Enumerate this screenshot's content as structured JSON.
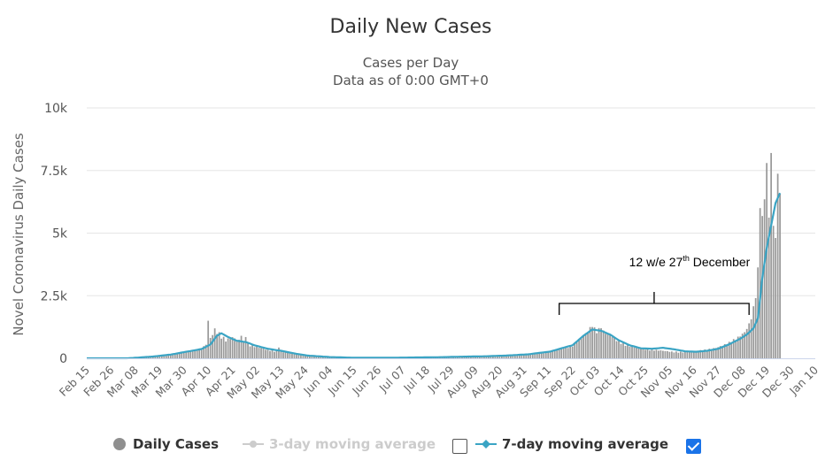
{
  "chart_data": {
    "type": "bar",
    "title": "Daily New Cases",
    "subtitle": [
      "Cases per Day",
      "Data as of 0:00 GMT+0"
    ],
    "ylabel": "Novel Coronavirus Daily Cases",
    "ylim": [
      0,
      10000
    ],
    "yticks": [
      {
        "value": 0,
        "label": "0"
      },
      {
        "value": 2500,
        "label": "2.5k"
      },
      {
        "value": 5000,
        "label": "5k"
      },
      {
        "value": 7500,
        "label": "7.5k"
      },
      {
        "value": 10000,
        "label": "10k"
      }
    ],
    "xtick_labels": [
      "Feb 15",
      "Feb 26",
      "Mar 08",
      "Mar 19",
      "Mar 30",
      "Apr 10",
      "Apr 21",
      "May 02",
      "May 13",
      "May 24",
      "Jun 04",
      "Jun 15",
      "Jun 26",
      "Jul 07",
      "Jul 18",
      "Jul 29",
      "Aug 09",
      "Aug 20",
      "Aug 31",
      "Sep 11",
      "Sep 22",
      "Oct 03",
      "Oct 14",
      "Oct 25",
      "Nov 05",
      "Nov 16",
      "Nov 27",
      "Dec 08",
      "Dec 19",
      "Dec 30",
      "Jan 10"
    ],
    "days_per_tick": 11,
    "grid": true,
    "series": [
      {
        "name": "Daily Cases",
        "kind": "bar",
        "color": "#9a9a9a",
        "anchors": [
          [
            0,
            0
          ],
          [
            18,
            0
          ],
          [
            22,
            10
          ],
          [
            30,
            60
          ],
          [
            38,
            140
          ],
          [
            45,
            250
          ],
          [
            52,
            380
          ],
          [
            55,
            600
          ],
          [
            58,
            1100
          ],
          [
            60,
            950
          ],
          [
            63,
            700
          ],
          [
            66,
            800
          ],
          [
            70,
            650
          ],
          [
            75,
            480
          ],
          [
            82,
            320
          ],
          [
            90,
            230
          ],
          [
            100,
            100
          ],
          [
            110,
            40
          ],
          [
            120,
            20
          ],
          [
            130,
            15
          ],
          [
            140,
            20
          ],
          [
            150,
            30
          ],
          [
            160,
            40
          ],
          [
            170,
            60
          ],
          [
            180,
            70
          ],
          [
            190,
            100
          ],
          [
            200,
            150
          ],
          [
            210,
            250
          ],
          [
            215,
            380
          ],
          [
            220,
            500
          ],
          [
            225,
            850
          ],
          [
            228,
            1150
          ],
          [
            232,
            1100
          ],
          [
            236,
            950
          ],
          [
            240,
            700
          ],
          [
            245,
            500
          ],
          [
            250,
            380
          ],
          [
            255,
            340
          ],
          [
            260,
            300
          ],
          [
            265,
            250
          ],
          [
            270,
            240
          ],
          [
            275,
            270
          ],
          [
            280,
            320
          ],
          [
            285,
            400
          ],
          [
            290,
            550
          ],
          [
            295,
            800
          ],
          [
            298,
            1000
          ],
          [
            300,
            1300
          ],
          [
            302,
            1900
          ],
          [
            304,
            3300
          ],
          [
            306,
            5200
          ],
          [
            307,
            6500
          ],
          [
            308,
            7800
          ],
          [
            309,
            5500
          ],
          [
            310,
            8200
          ],
          [
            311,
            5000
          ],
          [
            312,
            4800
          ],
          [
            313,
            6800
          ],
          [
            314,
            6900
          ]
        ],
        "spikes": [
          [
            55,
            1500
          ],
          [
            70,
            900
          ],
          [
            72,
            850
          ],
          [
            87,
            430
          ],
          [
            229,
            1250
          ],
          [
            233,
            1200
          ],
          [
            305,
            6000
          ],
          [
            308,
            7800
          ],
          [
            310,
            8200
          ]
        ]
      },
      {
        "name": "3-day moving average",
        "kind": "line",
        "color": "#cccccc",
        "visible": false
      },
      {
        "name": "7-day moving average",
        "kind": "line",
        "color": "#3aa4c4",
        "visible": true,
        "anchors": [
          [
            0,
            0
          ],
          [
            18,
            0
          ],
          [
            22,
            20
          ],
          [
            30,
            70
          ],
          [
            38,
            150
          ],
          [
            45,
            260
          ],
          [
            52,
            370
          ],
          [
            56,
            550
          ],
          [
            59,
            900
          ],
          [
            61,
            1000
          ],
          [
            64,
            850
          ],
          [
            68,
            700
          ],
          [
            72,
            650
          ],
          [
            76,
            520
          ],
          [
            82,
            380
          ],
          [
            88,
            300
          ],
          [
            95,
            180
          ],
          [
            100,
            110
          ],
          [
            110,
            50
          ],
          [
            120,
            25
          ],
          [
            130,
            20
          ],
          [
            140,
            25
          ],
          [
            150,
            35
          ],
          [
            160,
            45
          ],
          [
            170,
            65
          ],
          [
            180,
            80
          ],
          [
            190,
            110
          ],
          [
            200,
            160
          ],
          [
            210,
            270
          ],
          [
            215,
            400
          ],
          [
            220,
            520
          ],
          [
            225,
            900
          ],
          [
            229,
            1150
          ],
          [
            233,
            1100
          ],
          [
            237,
            950
          ],
          [
            241,
            720
          ],
          [
            246,
            520
          ],
          [
            251,
            400
          ],
          [
            256,
            380
          ],
          [
            261,
            420
          ],
          [
            266,
            360
          ],
          [
            271,
            280
          ],
          [
            276,
            260
          ],
          [
            281,
            300
          ],
          [
            286,
            380
          ],
          [
            291,
            560
          ],
          [
            296,
            780
          ],
          [
            299,
            950
          ],
          [
            302,
            1200
          ],
          [
            304,
            1600
          ],
          [
            306,
            3200
          ],
          [
            308,
            4400
          ],
          [
            310,
            5300
          ],
          [
            312,
            6200
          ],
          [
            314,
            6600
          ]
        ]
      }
    ],
    "annotation": {
      "text": "12 w/e 27",
      "sup": "th",
      "tail": " December",
      "day_start": 214,
      "day_end": 300
    }
  },
  "legend": {
    "daily": "Daily Cases",
    "ma3": "3-day moving average",
    "ma7": "7-day moving average"
  }
}
